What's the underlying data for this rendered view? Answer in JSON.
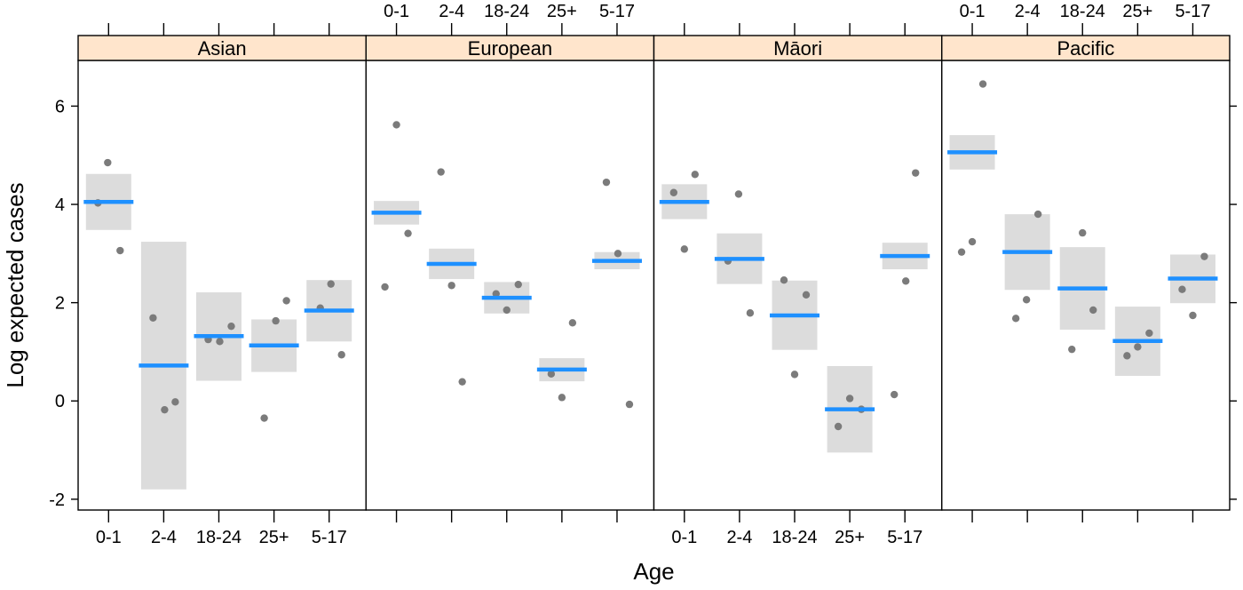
{
  "chart_data": {
    "type": "scatter",
    "subtype": "lattice-effects-plot",
    "title": "",
    "xlabel": "Age",
    "ylabel": "Log expected cases",
    "categories": [
      "0-1",
      "2-4",
      "18-24",
      "25+",
      "5-17"
    ],
    "ylim": [
      -2.22,
      6.93
    ],
    "yticks": [
      -2,
      0,
      2,
      4,
      6
    ],
    "ytick_labels": [
      "-2",
      "0",
      "2",
      "4",
      "6"
    ],
    "grid": false,
    "legend": "none",
    "top_axis_labeled_panels": [
      "European",
      "Pacific"
    ],
    "bottom_axis_labeled_panels": [
      "Asian",
      "Māori"
    ],
    "marks": {
      "band_meaning": "confidence interval",
      "line_meaning": "fitted log expected cases",
      "point_meaning": "observed values (jittered)"
    },
    "colors": {
      "fit_line": "#1E90FF",
      "ci_band": "#DCDCDC",
      "point": "#7B7B7B",
      "strip_background": "#FFE5CC",
      "border": "#000000",
      "background": "#FFFFFF",
      "text": "#000000"
    },
    "panels": [
      {
        "name": "Asian",
        "groups": [
          {
            "age": "0-1",
            "fit": 4.05,
            "ci_lower": 3.48,
            "ci_upper": 4.62,
            "points": [
              {
                "dx": -1,
                "y": 4.85
              },
              {
                "dx": -12,
                "y": 4.03
              },
              {
                "dx": 13,
                "y": 3.06
              }
            ]
          },
          {
            "age": "2-4",
            "fit": 0.72,
            "ci_lower": -1.8,
            "ci_upper": 3.24,
            "points": [
              {
                "dx": -12,
                "y": 1.69
              },
              {
                "dx": 1,
                "y": -0.18
              },
              {
                "dx": 13,
                "y": -0.02
              }
            ]
          },
          {
            "age": "18-24",
            "fit": 1.32,
            "ci_lower": 0.41,
            "ci_upper": 2.21,
            "points": [
              {
                "dx": -12,
                "y": 1.25
              },
              {
                "dx": 1,
                "y": 1.21
              },
              {
                "dx": 14,
                "y": 1.52
              }
            ]
          },
          {
            "age": "25+",
            "fit": 1.13,
            "ci_lower": 0.59,
            "ci_upper": 1.66,
            "points": [
              {
                "dx": 14,
                "y": 2.04
              },
              {
                "dx": 2,
                "y": 1.63
              },
              {
                "dx": -11,
                "y": -0.35
              }
            ]
          },
          {
            "age": "5-17",
            "fit": 1.84,
            "ci_lower": 1.21,
            "ci_upper": 2.46,
            "points": [
              {
                "dx": 2,
                "y": 2.38
              },
              {
                "dx": -10,
                "y": 1.89
              },
              {
                "dx": 14,
                "y": 0.94
              }
            ]
          }
        ]
      },
      {
        "name": "European",
        "groups": [
          {
            "age": "0-1",
            "fit": 3.83,
            "ci_lower": 3.59,
            "ci_upper": 4.07,
            "points": [
              {
                "dx": 0,
                "y": 5.62
              },
              {
                "dx": 13,
                "y": 3.41
              },
              {
                "dx": -13,
                "y": 2.32
              }
            ]
          },
          {
            "age": "2-4",
            "fit": 2.79,
            "ci_lower": 2.48,
            "ci_upper": 3.1,
            "points": [
              {
                "dx": -12,
                "y": 4.66
              },
              {
                "dx": 0,
                "y": 2.35
              },
              {
                "dx": 12,
                "y": 0.39
              }
            ]
          },
          {
            "age": "18-24",
            "fit": 2.1,
            "ci_lower": 1.78,
            "ci_upper": 2.42,
            "points": [
              {
                "dx": -12,
                "y": 2.18
              },
              {
                "dx": 13,
                "y": 2.37
              },
              {
                "dx": 0,
                "y": 1.85
              }
            ]
          },
          {
            "age": "25+",
            "fit": 0.64,
            "ci_lower": 0.4,
            "ci_upper": 0.87,
            "points": [
              {
                "dx": 12,
                "y": 1.59
              },
              {
                "dx": -12,
                "y": 0.55
              },
              {
                "dx": 0,
                "y": 0.07
              }
            ]
          },
          {
            "age": "5-17",
            "fit": 2.85,
            "ci_lower": 2.68,
            "ci_upper": 3.03,
            "points": [
              {
                "dx": -12,
                "y": 4.45
              },
              {
                "dx": 1,
                "y": 3.0
              },
              {
                "dx": 14,
                "y": -0.07
              }
            ]
          }
        ]
      },
      {
        "name": "Māori",
        "groups": [
          {
            "age": "0-1",
            "fit": 4.05,
            "ci_lower": 3.7,
            "ci_upper": 4.41,
            "points": [
              {
                "dx": 12,
                "y": 4.61
              },
              {
                "dx": -12,
                "y": 4.24
              },
              {
                "dx": 0,
                "y": 3.09
              }
            ]
          },
          {
            "age": "2-4",
            "fit": 2.89,
            "ci_lower": 2.38,
            "ci_upper": 3.41,
            "points": [
              {
                "dx": -1,
                "y": 4.21
              },
              {
                "dx": -13,
                "y": 2.85
              },
              {
                "dx": 12,
                "y": 1.79
              }
            ]
          },
          {
            "age": "18-24",
            "fit": 1.74,
            "ci_lower": 1.04,
            "ci_upper": 2.45,
            "points": [
              {
                "dx": -12,
                "y": 2.46
              },
              {
                "dx": 13,
                "y": 2.16
              },
              {
                "dx": 0,
                "y": 0.54
              }
            ]
          },
          {
            "age": "25+",
            "fit": -0.17,
            "ci_lower": -1.05,
            "ci_upper": 0.71,
            "points": [
              {
                "dx": 0,
                "y": 0.05
              },
              {
                "dx": 13,
                "y": -0.17
              },
              {
                "dx": -13,
                "y": -0.52
              }
            ]
          },
          {
            "age": "5-17",
            "fit": 2.95,
            "ci_lower": 2.68,
            "ci_upper": 3.22,
            "points": [
              {
                "dx": 12,
                "y": 4.64
              },
              {
                "dx": 1,
                "y": 2.44
              },
              {
                "dx": -12,
                "y": 0.13
              }
            ]
          }
        ]
      },
      {
        "name": "Pacific",
        "groups": [
          {
            "age": "0-1",
            "fit": 5.06,
            "ci_lower": 4.71,
            "ci_upper": 5.41,
            "points": [
              {
                "dx": 12,
                "y": 6.45
              },
              {
                "dx": 0,
                "y": 3.24
              },
              {
                "dx": -12,
                "y": 3.03
              }
            ]
          },
          {
            "age": "2-4",
            "fit": 3.03,
            "ci_lower": 2.26,
            "ci_upper": 3.8,
            "points": [
              {
                "dx": 12,
                "y": 3.8
              },
              {
                "dx": -1,
                "y": 2.06
              },
              {
                "dx": -13,
                "y": 1.68
              }
            ]
          },
          {
            "age": "18-24",
            "fit": 2.29,
            "ci_lower": 1.45,
            "ci_upper": 3.13,
            "points": [
              {
                "dx": 0,
                "y": 3.42
              },
              {
                "dx": 12,
                "y": 1.85
              },
              {
                "dx": -12,
                "y": 1.05
              }
            ]
          },
          {
            "age": "25+",
            "fit": 1.22,
            "ci_lower": 0.51,
            "ci_upper": 1.92,
            "points": [
              {
                "dx": 13,
                "y": 1.38
              },
              {
                "dx": 0,
                "y": 1.1
              },
              {
                "dx": -12,
                "y": 0.92
              }
            ]
          },
          {
            "age": "5-17",
            "fit": 2.49,
            "ci_lower": 1.99,
            "ci_upper": 2.98,
            "points": [
              {
                "dx": 13,
                "y": 2.94
              },
              {
                "dx": -12,
                "y": 2.27
              },
              {
                "dx": 0,
                "y": 1.74
              }
            ]
          }
        ]
      }
    ]
  }
}
